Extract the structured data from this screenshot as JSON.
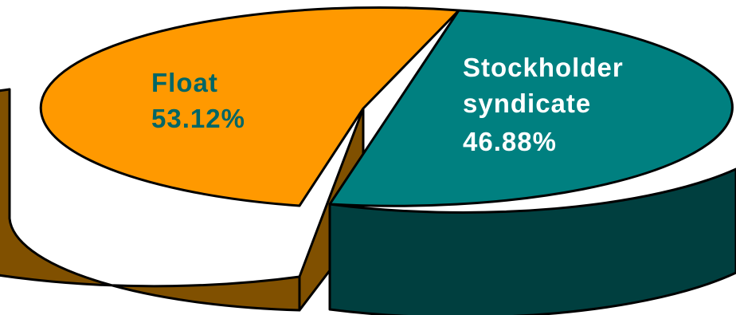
{
  "chart_data": {
    "type": "pie",
    "style": "3d-exploded",
    "title": "",
    "slices": [
      {
        "name": "Float",
        "value": 53.12,
        "value_label": "53.12%",
        "color": "#FF9900",
        "side_color": "#805000",
        "label_color": "#006666"
      },
      {
        "name": "Stockholder syndicate",
        "name_lines": [
          "Stockholder",
          "syndicate"
        ],
        "value": 46.88,
        "value_label": "46.88%",
        "color": "#008080",
        "side_color": "#003F3F",
        "label_color": "#FFFFFF"
      }
    ]
  }
}
